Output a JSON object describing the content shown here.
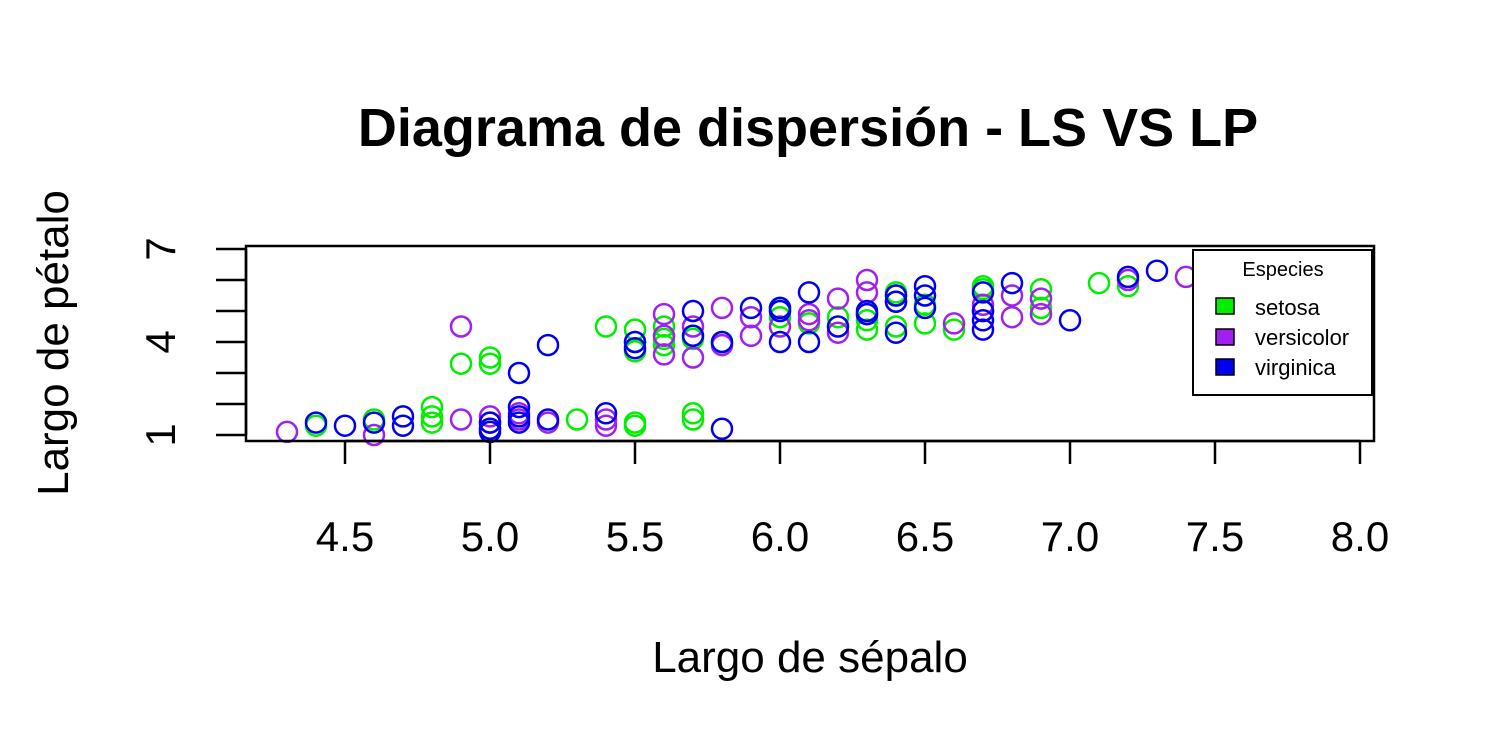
{
  "chart_data": {
    "type": "scatter",
    "title": "Diagrama de dispersión - LS VS LP",
    "xlabel": "Largo de sépalo",
    "ylabel": "Largo de pétalo",
    "xlim": [
      4.3,
      7.9
    ],
    "ylim": [
      1.0,
      6.9
    ],
    "x_ticks": [
      4.5,
      5.0,
      5.5,
      6.0,
      6.5,
      7.0,
      7.5,
      8.0
    ],
    "x_tick_labels": [
      "4.5",
      "5.0",
      "5.5",
      "6.0",
      "6.5",
      "7.0",
      "7.5",
      "8.0"
    ],
    "y_ticks": [
      1,
      2,
      3,
      4,
      5,
      6,
      7
    ],
    "y_tick_labels": [
      "1",
      "",
      "",
      "4",
      "",
      "",
      "7"
    ],
    "legend": {
      "title": "Especies",
      "position": "top-right",
      "entries": [
        "setosa",
        "versicolor",
        "virginica"
      ]
    },
    "series": [
      {
        "name": "setosa",
        "color": "#00ee00",
        "points": [
          [
            4.4,
            1.3
          ],
          [
            4.6,
            1.5
          ],
          [
            4.8,
            1.4
          ],
          [
            4.8,
            1.6
          ],
          [
            4.8,
            1.9
          ],
          [
            4.9,
            3.3
          ],
          [
            5.0,
            3.3
          ],
          [
            5.0,
            3.5
          ],
          [
            5.4,
            4.5
          ],
          [
            5.5,
            3.7
          ],
          [
            5.5,
            4.0
          ],
          [
            5.5,
            4.4
          ],
          [
            5.5,
            1.3
          ],
          [
            5.5,
            1.4
          ],
          [
            5.3,
            1.5
          ],
          [
            5.6,
            3.9
          ],
          [
            5.6,
            4.1
          ],
          [
            5.6,
            4.5
          ],
          [
            5.7,
            4.1
          ],
          [
            5.7,
            4.2
          ],
          [
            5.7,
            1.5
          ],
          [
            5.7,
            1.7
          ],
          [
            5.8,
            4.0
          ],
          [
            6.0,
            4.8
          ],
          [
            6.0,
            5.0
          ],
          [
            6.0,
            5.1
          ],
          [
            6.1,
            4.6
          ],
          [
            6.2,
            4.8
          ],
          [
            6.3,
            4.4
          ],
          [
            6.3,
            4.7
          ],
          [
            6.4,
            4.5
          ],
          [
            6.4,
            5.5
          ],
          [
            6.4,
            5.6
          ],
          [
            6.5,
            4.6
          ],
          [
            6.5,
            5.2
          ],
          [
            6.6,
            4.4
          ],
          [
            6.7,
            5.7
          ],
          [
            6.7,
            5.8
          ],
          [
            6.9,
            5.1
          ],
          [
            6.9,
            5.7
          ],
          [
            7.1,
            5.9
          ],
          [
            7.2,
            5.8
          ]
        ]
      },
      {
        "name": "versicolor",
        "color": "#a020f0",
        "points": [
          [
            4.3,
            1.1
          ],
          [
            4.6,
            1.0
          ],
          [
            4.9,
            1.5
          ],
          [
            4.9,
            4.5
          ],
          [
            5.0,
            1.2
          ],
          [
            5.0,
            1.4
          ],
          [
            5.0,
            1.6
          ],
          [
            5.1,
            1.5
          ],
          [
            5.1,
            1.7
          ],
          [
            5.2,
            1.4
          ],
          [
            5.4,
            1.3
          ],
          [
            5.4,
            1.5
          ],
          [
            5.6,
            3.6
          ],
          [
            5.6,
            4.2
          ],
          [
            5.6,
            4.9
          ],
          [
            5.7,
            3.5
          ],
          [
            5.7,
            4.5
          ],
          [
            5.8,
            3.9
          ],
          [
            5.8,
            5.1
          ],
          [
            5.9,
            4.2
          ],
          [
            5.9,
            4.8
          ],
          [
            6.0,
            4.5
          ],
          [
            6.1,
            4.7
          ],
          [
            6.1,
            4.9
          ],
          [
            6.2,
            4.3
          ],
          [
            6.2,
            5.4
          ],
          [
            6.3,
            4.9
          ],
          [
            6.3,
            5.6
          ],
          [
            6.3,
            6.0
          ],
          [
            6.4,
            5.3
          ],
          [
            6.6,
            4.6
          ],
          [
            6.7,
            5.0
          ],
          [
            6.7,
            5.2
          ],
          [
            6.8,
            4.8
          ],
          [
            6.8,
            5.5
          ],
          [
            6.9,
            4.9
          ],
          [
            6.9,
            5.4
          ],
          [
            7.2,
            6.0
          ],
          [
            7.4,
            6.1
          ]
        ]
      },
      {
        "name": "virginica",
        "color": "#0000ee",
        "points": [
          [
            4.4,
            1.4
          ],
          [
            4.5,
            1.3
          ],
          [
            4.6,
            1.4
          ],
          [
            4.7,
            1.3
          ],
          [
            4.7,
            1.6
          ],
          [
            5.0,
            1.1
          ],
          [
            5.0,
            1.2
          ],
          [
            5.0,
            1.4
          ],
          [
            5.1,
            1.4
          ],
          [
            5.1,
            1.6
          ],
          [
            5.1,
            1.9
          ],
          [
            5.1,
            3.0
          ],
          [
            5.2,
            1.5
          ],
          [
            5.2,
            3.9
          ],
          [
            5.4,
            1.7
          ],
          [
            5.5,
            3.8
          ],
          [
            5.5,
            4.0
          ],
          [
            5.7,
            4.2
          ],
          [
            5.7,
            5.0
          ],
          [
            5.8,
            1.2
          ],
          [
            5.8,
            4.0
          ],
          [
            5.9,
            5.1
          ],
          [
            6.0,
            4.0
          ],
          [
            6.0,
            5.0
          ],
          [
            6.0,
            5.1
          ],
          [
            6.1,
            4.0
          ],
          [
            6.1,
            5.6
          ],
          [
            6.2,
            4.5
          ],
          [
            6.3,
            4.9
          ],
          [
            6.3,
            5.0
          ],
          [
            6.4,
            4.3
          ],
          [
            6.4,
            5.3
          ],
          [
            6.4,
            5.5
          ],
          [
            6.5,
            5.1
          ],
          [
            6.5,
            5.5
          ],
          [
            6.5,
            5.8
          ],
          [
            6.7,
            4.4
          ],
          [
            6.7,
            4.7
          ],
          [
            6.7,
            5.0
          ],
          [
            6.7,
            5.6
          ],
          [
            6.8,
            5.9
          ],
          [
            7.0,
            4.7
          ],
          [
            7.2,
            6.1
          ],
          [
            7.3,
            6.3
          ]
        ]
      }
    ]
  }
}
